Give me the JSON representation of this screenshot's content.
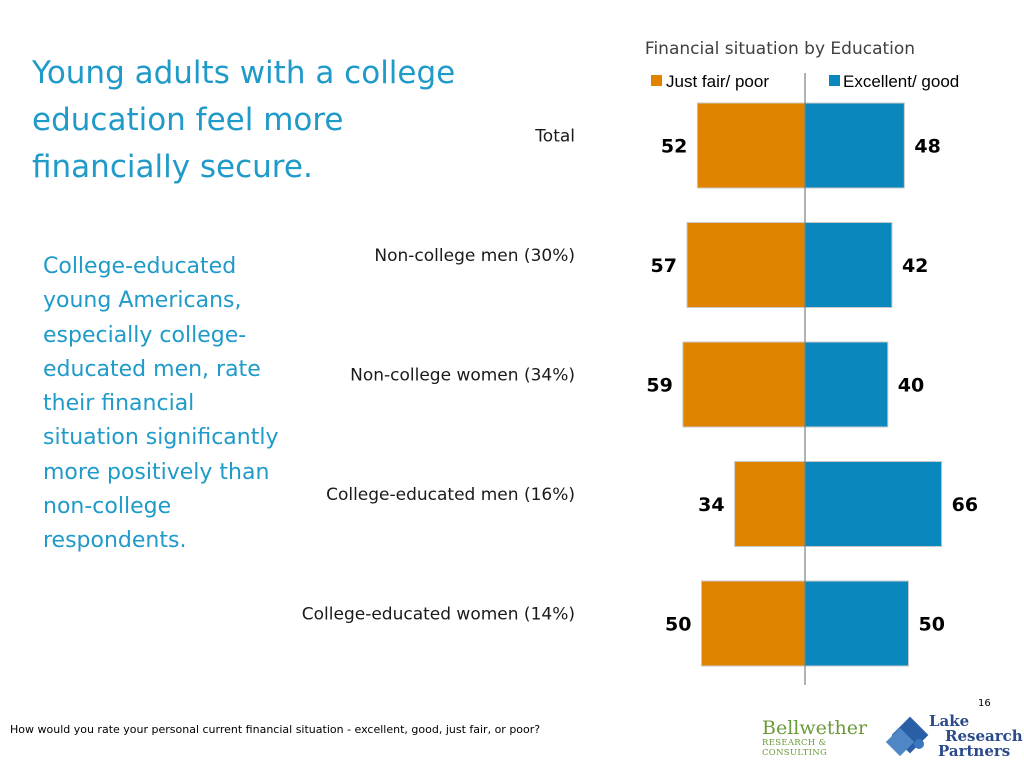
{
  "slide": {
    "title": "Young adults with a college education feel more financially secure.",
    "body": "College-educated young Americans, especially college-educated men, rate their financial situation significantly more positively than non-college respondents.",
    "footnote": "How would you rate your personal current financial situation - excellent, good, just fair, or poor?",
    "page_number": "16"
  },
  "logos": {
    "bellwether_name": "Bellwether",
    "bellwether_sub": "RESEARCH & CONSULTING",
    "lake_line1": "Lake",
    "lake_line2": "Research",
    "lake_line3": "Partners"
  },
  "colors": {
    "negative": "#e08400",
    "positive": "#0a87bd",
    "accent_text": "#1f9ac9"
  },
  "chart_data": {
    "type": "bar",
    "orientation": "horizontal-diverging",
    "title": "Financial situation by Education",
    "categories": [
      "Total",
      "Non-college men (30%)",
      "Non-college women (34%)",
      "College-educated men (16%)",
      "College-educated women (14%)"
    ],
    "series": [
      {
        "name": "Just fair/ poor",
        "values": [
          52,
          57,
          59,
          34,
          50
        ],
        "direction": "left",
        "color": "#e08400"
      },
      {
        "name": "Excellent/ good",
        "values": [
          48,
          42,
          40,
          66,
          50
        ],
        "direction": "right",
        "color": "#0a87bd"
      }
    ],
    "legend": "top",
    "grid": false,
    "xlim": [
      0,
      70
    ]
  }
}
